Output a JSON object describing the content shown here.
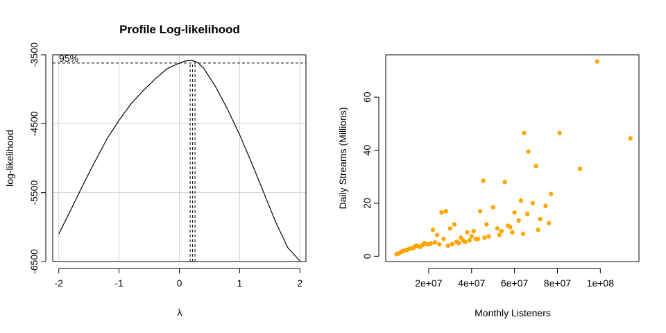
{
  "chart_data": [
    {
      "type": "line",
      "title": "Profile Log-likelihood",
      "xlabel": "λ",
      "ylabel": "log-likelihood",
      "xlim": [
        -2.1,
        2.1
      ],
      "ylim": [
        -6500,
        -3500
      ],
      "xticks": [
        "-2",
        "-1",
        "0",
        "1",
        "2"
      ],
      "yticks": [
        "-3500",
        "-4500",
        "-5500",
        "-6500"
      ],
      "grid": true,
      "annotation": "95%",
      "ci_threshold": -3620,
      "ci_lines": [
        0.18,
        0.22,
        0.26
      ],
      "curve_style": "solid black",
      "x": [
        -2.0,
        -1.8,
        -1.6,
        -1.4,
        -1.2,
        -1.0,
        -0.8,
        -0.6,
        -0.4,
        -0.2,
        0.0,
        0.1,
        0.2,
        0.3,
        0.4,
        0.6,
        0.8,
        1.0,
        1.2,
        1.4,
        1.6,
        1.8,
        2.0
      ],
      "y": [
        -6100,
        -5750,
        -5390,
        -5050,
        -4720,
        -4450,
        -4210,
        -4020,
        -3850,
        -3700,
        -3620,
        -3590,
        -3580,
        -3610,
        -3690,
        -3960,
        -4290,
        -4660,
        -5070,
        -5500,
        -5930,
        -6300,
        -6490
      ]
    },
    {
      "type": "scatter",
      "title": "",
      "xlabel": "Monthly Listeners",
      "ylabel": "Daily Streams (Millions)",
      "xlim": [
        0,
        118000000
      ],
      "ylim": [
        -2,
        76
      ],
      "xticks": [
        "2e+07",
        "4e+07",
        "6e+07",
        "8e+07",
        "1e+08"
      ],
      "yticks": [
        "0",
        "20",
        "40",
        "60"
      ],
      "grid": false,
      "point_color": "#FFA500",
      "x": [
        98500000,
        114000000,
        64500000,
        66500000,
        81000000,
        70000000,
        90500000,
        45500000,
        55500000,
        77000000,
        63000000,
        68500000,
        60000000,
        74500000,
        44000000,
        50000000,
        47000000,
        62000000,
        58000000,
        66000000,
        72000000,
        76000000,
        52000000,
        64000000,
        71000000,
        59000000,
        41000000,
        53000000,
        48000000,
        43000000,
        28000000,
        26000000,
        32000000,
        38000000,
        35000000,
        30000000,
        24000000,
        22000000,
        27000000,
        33000000,
        36000000,
        40000000,
        20000000,
        18000000,
        16000000,
        14000000,
        12000000,
        10000000,
        8000000,
        6000000,
        5000000,
        7000000,
        9000000,
        11000000,
        13000000,
        15000000,
        17000000,
        19000000,
        21000000,
        23000000,
        25000000,
        29000000,
        31000000,
        34000000,
        37000000,
        39000000,
        42000000,
        46000000,
        54000000,
        57000000
      ],
      "y": [
        73.5,
        44.5,
        46.5,
        39.5,
        46.5,
        34.0,
        33.0,
        28.5,
        28.0,
        23.5,
        21.0,
        20.0,
        16.5,
        19.0,
        17.0,
        18.5,
        12.0,
        13.5,
        11.0,
        16.0,
        14.0,
        12.5,
        10.5,
        8.5,
        10.0,
        9.0,
        9.5,
        8.0,
        7.5,
        6.5,
        17.0,
        16.5,
        12.0,
        9.0,
        7.0,
        10.5,
        8.0,
        10.0,
        6.5,
        5.5,
        6.0,
        7.5,
        4.5,
        5.0,
        3.5,
        4.0,
        3.0,
        2.5,
        2.0,
        1.0,
        0.8,
        1.5,
        2.2,
        2.8,
        3.2,
        3.8,
        4.2,
        4.6,
        4.8,
        5.2,
        4.5,
        4.0,
        4.6,
        5.0,
        5.4,
        6.0,
        6.5,
        7.0,
        9.5,
        11.5
      ]
    }
  ]
}
